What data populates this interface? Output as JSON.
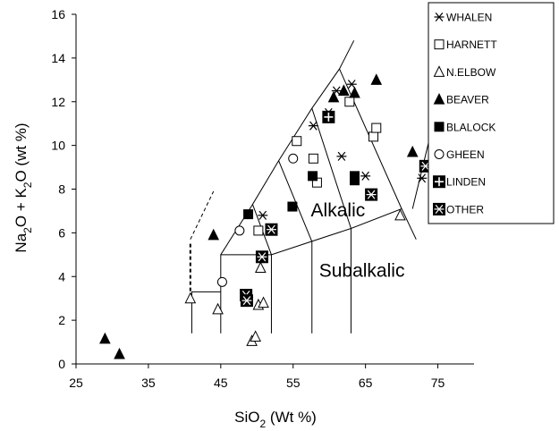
{
  "chart_data": {
    "type": "scatter",
    "xlabel": "SiO 2 (Wt %)",
    "ylabel": "Na2O + K2O (wt %)",
    "xlim": [
      25,
      80
    ],
    "ylim": [
      0,
      16
    ],
    "xticks": [
      25,
      35,
      45,
      55,
      65,
      75
    ],
    "yticks": [
      0,
      2,
      4,
      6,
      8,
      10,
      12,
      14,
      16
    ],
    "grid": false,
    "legend_position": "top-right",
    "field_labels": [
      {
        "text": "Alkalic",
        "x": 61.2,
        "y": 6.75
      },
      {
        "text": "Subalkalic",
        "x": 64.5,
        "y": 4.0
      }
    ],
    "tas_lines": [
      [
        [
          41,
          1.4
        ],
        [
          41,
          3.3
        ],
        [
          45,
          3.3
        ]
      ],
      [
        [
          45,
          1.4
        ],
        [
          45,
          5.0
        ],
        [
          52,
          5.0
        ],
        [
          57.5,
          5.6
        ],
        [
          63,
          6.2
        ],
        [
          70,
          7.1
        ],
        [
          72,
          5.7
        ]
      ],
      [
        [
          52,
          1.4
        ],
        [
          52,
          5.0
        ]
      ],
      [
        [
          57.6,
          1.4
        ],
        [
          57.6,
          5.6
        ]
      ],
      [
        [
          63,
          1.4
        ],
        [
          63,
          6.2
        ]
      ],
      [
        [
          52,
          5.0
        ],
        [
          49.4,
          7.3
        ],
        [
          53,
          9.3
        ],
        [
          57.6,
          11.7
        ],
        [
          61.4,
          13.5
        ],
        [
          63.4,
          14.8
        ]
      ],
      [
        [
          57.6,
          5.6
        ],
        [
          53,
          9.3
        ]
      ],
      [
        [
          63,
          6.2
        ],
        [
          57.6,
          11.7
        ]
      ],
      [
        [
          70,
          7.1
        ],
        [
          61.4,
          13.5
        ]
      ],
      [
        [
          45,
          5.0
        ],
        [
          49.4,
          7.3
        ]
      ],
      [
        [
          71.5,
          7.1
        ],
        [
          74.5,
          11.2
        ]
      ]
    ],
    "tas_dashed": [
      [
        [
          40.8,
          5.5
        ],
        [
          40.8,
          3.3
        ]
      ],
      [
        [
          40.8,
          5.7
        ],
        [
          44,
          7.9
        ]
      ]
    ],
    "series": [
      {
        "name": "WHALEN",
        "marker": "asterisk",
        "points": [
          [
            50.8,
            6.8
          ],
          [
            57.8,
            10.9
          ],
          [
            59.9,
            11.5
          ],
          [
            61.7,
            9.5
          ],
          [
            61.0,
            12.5
          ],
          [
            63.1,
            12.8
          ],
          [
            65.0,
            8.6
          ],
          [
            72.8,
            8.5
          ]
        ]
      },
      {
        "name": "HARNETT",
        "marker": "square-open",
        "points": [
          [
            50.2,
            6.1
          ],
          [
            55.5,
            10.2
          ],
          [
            57.8,
            9.4
          ],
          [
            58.3,
            8.3
          ],
          [
            62.8,
            12.0
          ],
          [
            66.1,
            10.4
          ],
          [
            66.5,
            10.8
          ]
        ]
      },
      {
        "name": "N.ELBOW",
        "marker": "triangle-open",
        "points": [
          [
            40.8,
            3.0
          ],
          [
            44.6,
            2.5
          ],
          [
            49.3,
            1.05
          ],
          [
            49.8,
            1.25
          ],
          [
            50.2,
            2.7
          ],
          [
            50.5,
            4.4
          ],
          [
            50.9,
            2.8
          ],
          [
            69.8,
            6.8
          ]
        ]
      },
      {
        "name": "BEAVER",
        "marker": "triangle-filled",
        "points": [
          [
            29.0,
            1.15
          ],
          [
            31.0,
            0.45
          ],
          [
            44.0,
            5.9
          ],
          [
            60.6,
            12.2
          ],
          [
            62.0,
            12.5
          ],
          [
            63.5,
            12.4
          ],
          [
            66.5,
            13.0
          ],
          [
            71.5,
            9.7
          ]
        ]
      },
      {
        "name": "BLALOCK",
        "marker": "square-filled",
        "points": [
          [
            48.8,
            6.85
          ],
          [
            54.9,
            7.2
          ],
          [
            57.7,
            8.6
          ],
          [
            63.5,
            8.4
          ],
          [
            63.5,
            8.6
          ]
        ]
      },
      {
        "name": "GHEEN",
        "marker": "circle-open",
        "points": [
          [
            45.2,
            3.75
          ],
          [
            47.6,
            6.1
          ],
          [
            55.0,
            9.4
          ]
        ]
      },
      {
        "name": "LINDEN",
        "marker": "square-plus",
        "points": [
          [
            59.9,
            11.3
          ]
        ]
      },
      {
        "name": "OTHER",
        "marker": "square-asterisk",
        "points": [
          [
            48.5,
            3.15
          ],
          [
            48.6,
            2.9
          ],
          [
            50.7,
            4.9
          ],
          [
            52.0,
            6.15
          ],
          [
            65.8,
            7.75
          ],
          [
            73.3,
            9.05
          ]
        ]
      }
    ]
  }
}
